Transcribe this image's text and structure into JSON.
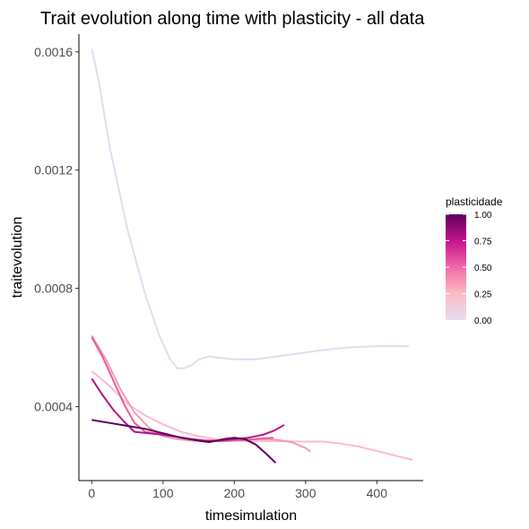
{
  "chart_data": {
    "type": "line",
    "title": "Trait evolution along time with plasticity - all data",
    "xlabel": "timesimulation",
    "ylabel": "traitevolution",
    "xlim": [
      -18,
      465
    ],
    "ylim": [
      0.00015,
      0.00166
    ],
    "x_ticks": [
      0,
      100,
      200,
      300,
      400
    ],
    "x_tick_labels": [
      "0",
      "100",
      "200",
      "300",
      "400"
    ],
    "y_ticks": [
      0.0004,
      0.0008,
      0.0012,
      0.0016
    ],
    "y_tick_labels": [
      "0.0004",
      "0.0008",
      "0.0012",
      "0.0016"
    ],
    "grid": false,
    "legend": {
      "title": "plasticidade",
      "position": "right",
      "type": "colorbar",
      "range": [
        0,
        1
      ],
      "ticks": [
        0,
        0.25,
        0.5,
        0.75,
        1.0
      ],
      "tick_labels": [
        "0.00",
        "0.25",
        "0.50",
        "0.75",
        "1.00"
      ],
      "colors": [
        "#e3dcef",
        "#fcbcc3",
        "#f06aa8",
        "#c4148c",
        "#5b005e"
      ]
    },
    "series": [
      {
        "plasticidade": 0.0,
        "color": "#e3dcef",
        "points": [
          [
            0,
            0.00161
          ],
          [
            10,
            0.0015
          ],
          [
            25,
            0.00128
          ],
          [
            50,
            0.001
          ],
          [
            75,
            0.00078
          ],
          [
            95,
            0.00064
          ],
          [
            110,
            0.00056
          ],
          [
            120,
            0.00053
          ],
          [
            130,
            0.00053
          ],
          [
            140,
            0.00054
          ],
          [
            150,
            0.00056
          ],
          [
            165,
            0.00057
          ],
          [
            180,
            0.000565
          ],
          [
            200,
            0.00056
          ],
          [
            230,
            0.00056
          ],
          [
            260,
            0.00057
          ],
          [
            290,
            0.00058
          ],
          [
            320,
            0.00059
          ],
          [
            350,
            0.000598
          ],
          [
            380,
            0.000603
          ],
          [
            410,
            0.000605
          ],
          [
            445,
            0.000604
          ]
        ]
      },
      {
        "plasticidade": 0.25,
        "color": "#fcbcc3",
        "points": [
          [
            0,
            0.00052
          ],
          [
            25,
            0.00047
          ],
          [
            50,
            0.00041
          ],
          [
            75,
            0.00037
          ],
          [
            100,
            0.00034
          ],
          [
            125,
            0.000315
          ],
          [
            150,
            0.0003
          ],
          [
            175,
            0.00029
          ],
          [
            200,
            0.000285
          ],
          [
            225,
            0.000283
          ],
          [
            250,
            0.000283
          ],
          [
            275,
            0.000283
          ],
          [
            300,
            0.000282
          ],
          [
            325,
            0.000282
          ],
          [
            350,
            0.000275
          ],
          [
            375,
            0.000265
          ],
          [
            400,
            0.00025
          ],
          [
            425,
            0.000235
          ],
          [
            450,
            0.00022
          ]
        ]
      },
      {
        "plasticidade": 0.4,
        "color": "#f49ab7",
        "points": [
          [
            0,
            0.00064
          ],
          [
            20,
            0.00056
          ],
          [
            40,
            0.00046
          ],
          [
            60,
            0.00038
          ],
          [
            80,
            0.00033
          ],
          [
            100,
            0.0003
          ],
          [
            120,
            0.00029
          ],
          [
            140,
            0.000285
          ],
          [
            160,
            0.000283
          ],
          [
            180,
            0.000283
          ],
          [
            200,
            0.000285
          ],
          [
            220,
            0.000288
          ],
          [
            240,
            0.00029
          ],
          [
            260,
            0.000288
          ],
          [
            280,
            0.00028
          ],
          [
            300,
            0.00026
          ],
          [
            307,
            0.000248
          ]
        ]
      },
      {
        "plasticidade": 0.55,
        "color": "#ea5b9c",
        "points": [
          [
            0,
            0.000635
          ],
          [
            15,
            0.00057
          ],
          [
            30,
            0.00049
          ],
          [
            45,
            0.00041
          ],
          [
            60,
            0.000345
          ],
          [
            75,
            0.000315
          ],
          [
            95,
            0.000308
          ],
          [
            115,
            0.0003
          ],
          [
            135,
            0.000292
          ],
          [
            155,
            0.000287
          ],
          [
            175,
            0.000285
          ],
          [
            195,
            0.000285
          ],
          [
            215,
            0.000287
          ],
          [
            235,
            0.000292
          ],
          [
            255,
            0.000295
          ]
        ]
      },
      {
        "plasticidade": 0.8,
        "color": "#b8128a",
        "points": [
          [
            0,
            0.000495
          ],
          [
            15,
            0.00044
          ],
          [
            30,
            0.00039
          ],
          [
            45,
            0.00035
          ],
          [
            60,
            0.000315
          ],
          [
            80,
            0.00031
          ],
          [
            100,
            0.000305
          ],
          [
            120,
            0.000298
          ],
          [
            140,
            0.00029
          ],
          [
            160,
            0.000283
          ],
          [
            180,
            0.000285
          ],
          [
            200,
            0.00029
          ],
          [
            220,
            0.000295
          ],
          [
            240,
            0.000305
          ],
          [
            255,
            0.000318
          ],
          [
            270,
            0.000338
          ]
        ]
      },
      {
        "plasticidade": 1.0,
        "color": "#5b005e",
        "points": [
          [
            0,
            0.000355
          ],
          [
            25,
            0.000345
          ],
          [
            50,
            0.000335
          ],
          [
            75,
            0.000325
          ],
          [
            100,
            0.00031
          ],
          [
            125,
            0.000295
          ],
          [
            150,
            0.000285
          ],
          [
            165,
            0.00028
          ],
          [
            185,
            0.00029
          ],
          [
            200,
            0.000295
          ],
          [
            215,
            0.00029
          ],
          [
            230,
            0.000272
          ],
          [
            245,
            0.00024
          ],
          [
            258,
            0.00021
          ]
        ]
      }
    ]
  }
}
